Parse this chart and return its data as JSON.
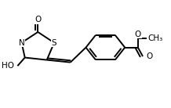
{
  "bg_color": "#ffffff",
  "line_color": "#000000",
  "line_width": 1.4,
  "font_size": 7.5,
  "figsize": [
    2.18,
    1.38
  ],
  "dpi": 100,
  "xlim": [
    0.0,
    1.0
  ],
  "ylim": [
    0.05,
    0.95
  ]
}
